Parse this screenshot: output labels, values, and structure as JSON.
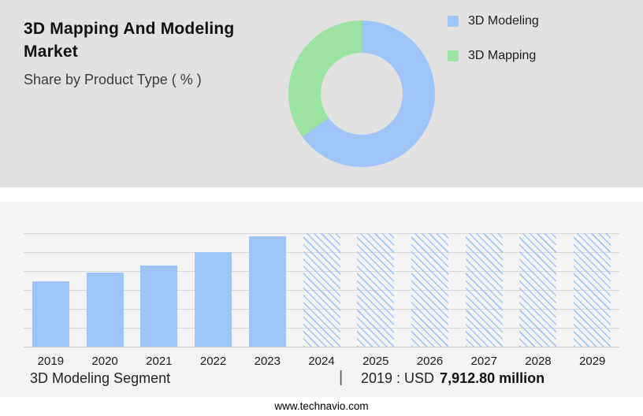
{
  "header": {
    "title": "3D Mapping And Modeling Market",
    "subtitle": "Share by Product Type ( % )"
  },
  "caption": {
    "segment": "3D Modeling Segment",
    "separator": "|",
    "value_prefix": "2019 : USD",
    "value": "7,912.80 million"
  },
  "footer": {
    "website": "www.technavio.com"
  },
  "colors": {
    "modeling_blue": "#9fc5f8",
    "mapping_green": "#9ce3a1",
    "top_panel_bg": "#e2e2e2",
    "bottom_panel_bg": "#f4f4f4"
  },
  "chart_data": [
    {
      "type": "pie",
      "variant": "donut",
      "title": "Share by Product Type ( % )",
      "labels": [
        "3D Modeling",
        "3D Mapping"
      ],
      "values": [
        65,
        35
      ],
      "colors": [
        "#9fc5f8",
        "#9ce3a1"
      ],
      "legend_position": "right"
    },
    {
      "type": "bar",
      "categories": [
        "2019",
        "2020",
        "2021",
        "2022",
        "2023",
        "2024",
        "2025",
        "2026",
        "2027",
        "2028",
        "2029"
      ],
      "series": [
        {
          "name": "3D Modeling Segment",
          "values": [
            7912.8,
            8900,
            9800,
            11400,
            13300,
            null,
            null,
            null,
            null,
            null,
            null
          ]
        }
      ],
      "bar_styles": [
        "solid",
        "solid",
        "solid",
        "solid",
        "solid",
        "hatched",
        "hatched",
        "hatched",
        "hatched",
        "hatched",
        "hatched"
      ],
      "bar_color": "#9fc5f8",
      "ylim": [
        0,
        13700
      ],
      "grid": true,
      "xlabel": "",
      "ylabel": "",
      "annotations": [
        "2019 : USD 7,912.80 million"
      ],
      "forecast_note": "bars 2024-2029 rendered as full-height hatched forecast bars"
    }
  ]
}
